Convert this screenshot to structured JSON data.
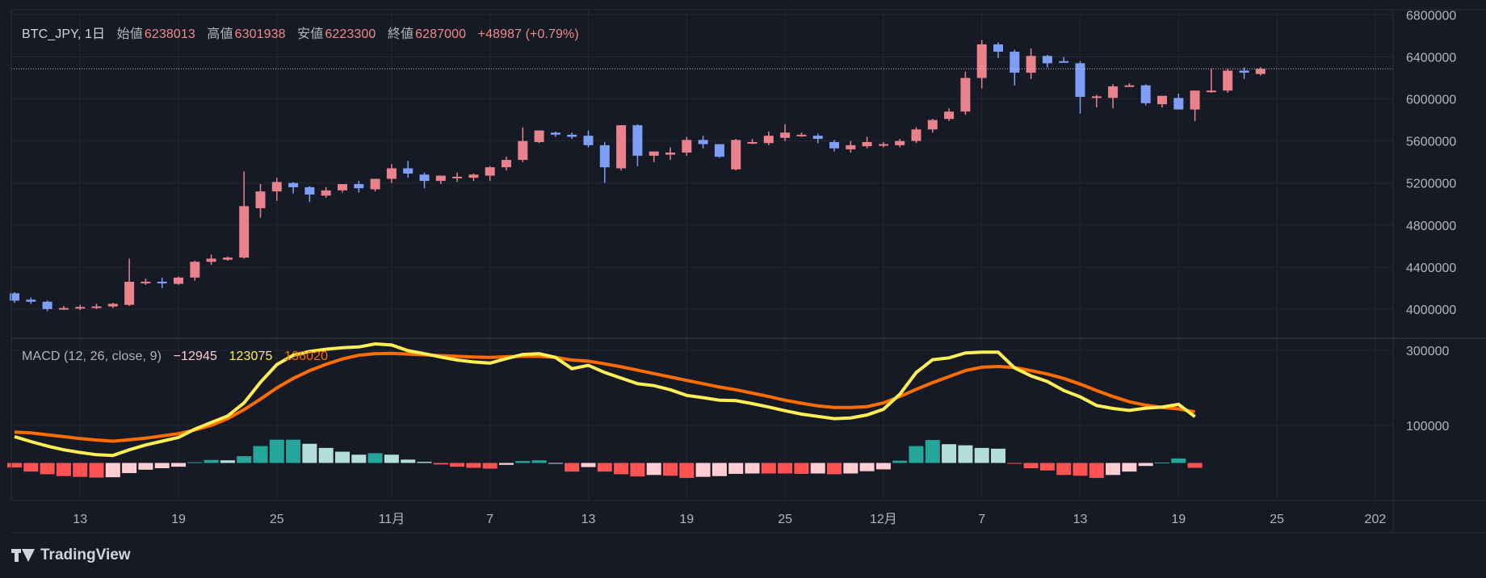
{
  "header": {
    "symbol": "BTC_JPY, 1日",
    "open_label": "始値",
    "open_value": "6238013",
    "high_label": "高値",
    "high_value": "6301938",
    "low_label": "安値",
    "low_value": "6223300",
    "close_label": "終値",
    "close_value": "6287000",
    "change": "+48987 (+0.79%)"
  },
  "macd_legend": {
    "label": "MACD (12, 26, close, 9)",
    "hist_value": "−12945",
    "macd_value": "123075",
    "signal_value": "136020"
  },
  "brand": {
    "name": "TradingView"
  },
  "colors": {
    "background": "#161a25",
    "up": "#e9828c",
    "down": "#7f9ef5",
    "macd_line": "#ffee58",
    "signal_line": "#ff6d00",
    "hist_pos_strong": "#26a69a",
    "hist_pos_weak": "#b2dfdb",
    "hist_neg_strong": "#ff5252",
    "hist_neg_weak": "#ffcdd2",
    "text": "#b2b5be",
    "header_value": "#ef8a8a"
  },
  "chart_data": [
    {
      "type": "candlestick",
      "title": "BTC_JPY, 1日",
      "x_tick_labels": [
        "13",
        "19",
        "25",
        "11月",
        "7",
        "13",
        "19",
        "25",
        "12月",
        "7",
        "13",
        "19",
        "25",
        "202"
      ],
      "x_tick_index": [
        4,
        10,
        16,
        23,
        29,
        35,
        41,
        47,
        53,
        59,
        65,
        71,
        77,
        83
      ],
      "y_tick_labels": [
        "6800000",
        "6400000",
        "6000000",
        "5600000",
        "5200000",
        "4800000",
        "4400000",
        "4000000"
      ],
      "y_ticks": [
        6800000,
        6400000,
        6000000,
        5600000,
        5200000,
        4800000,
        4400000,
        4000000
      ],
      "ylim": [
        3730000,
        6850000
      ],
      "last_price": 6287000,
      "ohlc": [
        [
          4150000,
          4160000,
          4060000,
          4080000
        ],
        [
          4090000,
          4110000,
          4050000,
          4070000
        ],
        [
          4070000,
          4080000,
          3980000,
          4000000
        ],
        [
          4000000,
          4030000,
          3990000,
          4010000
        ],
        [
          4010000,
          4040000,
          3990000,
          4020000
        ],
        [
          4020000,
          4050000,
          4000000,
          4025000
        ],
        [
          4025000,
          4060000,
          4010000,
          4050000
        ],
        [
          4040000,
          4480000,
          4030000,
          4260000
        ],
        [
          4250000,
          4290000,
          4230000,
          4260000
        ],
        [
          4260000,
          4300000,
          4200000,
          4255000
        ],
        [
          4240000,
          4310000,
          4230000,
          4300000
        ],
        [
          4300000,
          4460000,
          4270000,
          4450000
        ],
        [
          4450000,
          4520000,
          4420000,
          4480000
        ],
        [
          4470000,
          4500000,
          4460000,
          4490000
        ],
        [
          4490000,
          5310000,
          4480000,
          4980000
        ],
        [
          4960000,
          5190000,
          4870000,
          5120000
        ],
        [
          5120000,
          5250000,
          5030000,
          5210000
        ],
        [
          5200000,
          5210000,
          5100000,
          5160000
        ],
        [
          5160000,
          5170000,
          5020000,
          5090000
        ],
        [
          5080000,
          5160000,
          5060000,
          5130000
        ],
        [
          5130000,
          5190000,
          5110000,
          5190000
        ],
        [
          5190000,
          5220000,
          5110000,
          5150000
        ],
        [
          5140000,
          5240000,
          5120000,
          5240000
        ],
        [
          5240000,
          5380000,
          5200000,
          5340000
        ],
        [
          5340000,
          5410000,
          5250000,
          5290000
        ],
        [
          5280000,
          5300000,
          5150000,
          5220000
        ],
        [
          5220000,
          5270000,
          5190000,
          5270000
        ],
        [
          5250000,
          5300000,
          5210000,
          5260000
        ],
        [
          5250000,
          5290000,
          5220000,
          5280000
        ],
        [
          5270000,
          5360000,
          5220000,
          5350000
        ],
        [
          5350000,
          5450000,
          5320000,
          5420000
        ],
        [
          5420000,
          5730000,
          5400000,
          5600000
        ],
        [
          5590000,
          5700000,
          5580000,
          5700000
        ],
        [
          5680000,
          5690000,
          5640000,
          5660000
        ],
        [
          5660000,
          5680000,
          5620000,
          5640000
        ],
        [
          5650000,
          5700000,
          5540000,
          5560000
        ],
        [
          5560000,
          5590000,
          5200000,
          5350000
        ],
        [
          5340000,
          5750000,
          5320000,
          5750000
        ],
        [
          5750000,
          5760000,
          5360000,
          5460000
        ],
        [
          5460000,
          5500000,
          5400000,
          5500000
        ],
        [
          5470000,
          5540000,
          5420000,
          5490000
        ],
        [
          5490000,
          5640000,
          5460000,
          5610000
        ],
        [
          5610000,
          5650000,
          5530000,
          5570000
        ],
        [
          5570000,
          5570000,
          5440000,
          5450000
        ],
        [
          5330000,
          5620000,
          5320000,
          5610000
        ],
        [
          5580000,
          5620000,
          5570000,
          5590000
        ],
        [
          5580000,
          5690000,
          5560000,
          5650000
        ],
        [
          5630000,
          5760000,
          5600000,
          5680000
        ],
        [
          5650000,
          5680000,
          5640000,
          5660000
        ],
        [
          5650000,
          5670000,
          5580000,
          5620000
        ],
        [
          5590000,
          5610000,
          5500000,
          5530000
        ],
        [
          5520000,
          5600000,
          5490000,
          5560000
        ],
        [
          5550000,
          5640000,
          5530000,
          5590000
        ],
        [
          5560000,
          5590000,
          5540000,
          5570000
        ],
        [
          5560000,
          5620000,
          5540000,
          5600000
        ],
        [
          5600000,
          5730000,
          5580000,
          5710000
        ],
        [
          5710000,
          5810000,
          5680000,
          5800000
        ],
        [
          5810000,
          5910000,
          5790000,
          5880000
        ],
        [
          5880000,
          6260000,
          5850000,
          6200000
        ],
        [
          6200000,
          6560000,
          6100000,
          6520000
        ],
        [
          6520000,
          6540000,
          6390000,
          6450000
        ],
        [
          6450000,
          6470000,
          6130000,
          6250000
        ],
        [
          6250000,
          6480000,
          6190000,
          6410000
        ],
        [
          6410000,
          6420000,
          6300000,
          6340000
        ],
        [
          6360000,
          6400000,
          6350000,
          6350000
        ],
        [
          6340000,
          6360000,
          5860000,
          6020000
        ],
        [
          6010000,
          6040000,
          5920000,
          6025000
        ],
        [
          6010000,
          6140000,
          5910000,
          6120000
        ],
        [
          6130000,
          6150000,
          6120000,
          6130000
        ],
        [
          6130000,
          6140000,
          5940000,
          5960000
        ],
        [
          5950000,
          6020000,
          5920000,
          6030000
        ],
        [
          6010000,
          6050000,
          5900000,
          5900000
        ],
        [
          5900000,
          6080000,
          5790000,
          6080000
        ],
        [
          6070000,
          6290000,
          6060000,
          6080000
        ],
        [
          6080000,
          6290000,
          6060000,
          6270000
        ],
        [
          6270000,
          6300000,
          6190000,
          6250000
        ],
        [
          6238013,
          6301938,
          6223300,
          6287000
        ]
      ]
    },
    {
      "type": "macd",
      "title": "MACD (12, 26, close, 9)",
      "y_tick_labels": [
        "300000",
        "100000"
      ],
      "y_ticks": [
        300000,
        100000
      ],
      "ylim": [
        -100000,
        330000
      ],
      "macd": [
        70000,
        57000,
        45000,
        35000,
        28000,
        22000,
        20000,
        35000,
        48000,
        58000,
        68000,
        90000,
        108000,
        125000,
        160000,
        215000,
        262000,
        287000,
        297000,
        303000,
        307000,
        309000,
        317000,
        314000,
        299000,
        291000,
        282000,
        274000,
        269000,
        266000,
        278000,
        289000,
        291000,
        281000,
        251000,
        260000,
        241000,
        226000,
        211000,
        206000,
        195000,
        180000,
        174000,
        167000,
        166000,
        158000,
        149000,
        139000,
        130000,
        124000,
        118000,
        120000,
        128000,
        143000,
        183000,
        241000,
        275000,
        280000,
        293000,
        295000,
        295000,
        253000,
        232000,
        217000,
        193000,
        176000,
        153000,
        145000,
        140000,
        146000,
        149000,
        156000,
        123075
      ],
      "signal": [
        82000,
        80000,
        75000,
        70000,
        65000,
        61000,
        58000,
        62000,
        66000,
        72000,
        78000,
        88000,
        100000,
        118000,
        142000,
        170000,
        200000,
        225000,
        246000,
        263000,
        277000,
        287000,
        291000,
        292000,
        290000,
        288000,
        286000,
        284000,
        282000,
        281000,
        283000,
        284000,
        284000,
        281000,
        274000,
        271000,
        264000,
        256000,
        247000,
        238000,
        229000,
        220000,
        211000,
        202000,
        195000,
        186000,
        177000,
        167000,
        159000,
        152000,
        148000,
        148000,
        150000,
        160000,
        177000,
        196000,
        214000,
        230000,
        246000,
        255000,
        257000,
        254000,
        246000,
        237000,
        225000,
        210000,
        193000,
        177000,
        163000,
        154000,
        148000,
        144000,
        136020
      ],
      "histogram": [
        -12000,
        -23000,
        -30000,
        -35000,
        -37000,
        -39000,
        -38000,
        -27000,
        -18000,
        -14000,
        -10000,
        2000,
        8000,
        7000,
        18000,
        45000,
        62000,
        62000,
        51000,
        40000,
        30000,
        22000,
        26000,
        22000,
        9000,
        3000,
        -4000,
        -10000,
        -13000,
        -15000,
        -5000,
        5000,
        7000,
        0,
        -23000,
        -11000,
        -23000,
        -30000,
        -36000,
        -32000,
        -34000,
        -40000,
        -37000,
        -35000,
        -29000,
        -28000,
        -28000,
        -28000,
        -29000,
        -28000,
        -30000,
        -28000,
        -22000,
        -17000,
        6000,
        45000,
        61000,
        50000,
        47000,
        40000,
        38000,
        -1000,
        -14000,
        -20000,
        -32000,
        -34000,
        -40000,
        -32000,
        -23000,
        -8000,
        1000,
        12000,
        -12945
      ]
    }
  ]
}
